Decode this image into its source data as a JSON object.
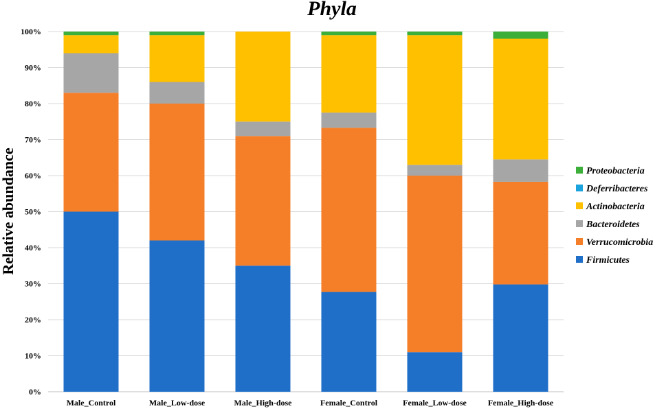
{
  "chart_data": {
    "type": "bar",
    "stacked": true,
    "title": "Phyla",
    "xlabel": "",
    "ylabel": "Relative abundance",
    "ylim": [
      0,
      100
    ],
    "y_ticks": [
      "0%",
      "10%",
      "20%",
      "30%",
      "40%",
      "50%",
      "60%",
      "70%",
      "80%",
      "90%",
      "100%"
    ],
    "grid": true,
    "legend_position": "right",
    "categories": [
      "Male_Control",
      "Male_Low-dose",
      "Male_High-dose",
      "Female_Control",
      "Female_Low-dose",
      "Female_High-dose"
    ],
    "series": [
      {
        "name": "Firmicutes",
        "color": "#1f6fc9",
        "values": [
          50,
          42,
          35,
          27.7,
          11,
          29.8
        ]
      },
      {
        "name": "Verrucomicrobia",
        "color": "#f57f29",
        "values": [
          33,
          38,
          36,
          45.6,
          49,
          28.5
        ]
      },
      {
        "name": "Bacteroidetes",
        "color": "#a6a6a6",
        "values": [
          11,
          6,
          4,
          4.2,
          3,
          6.2
        ]
      },
      {
        "name": "Actinobacteria",
        "color": "#ffc000",
        "values": [
          5,
          13,
          25,
          21.5,
          36,
          33.5
        ]
      },
      {
        "name": "Deferribacteres",
        "color": "#1aa3dc",
        "values": [
          0,
          0,
          0,
          0,
          0,
          0
        ]
      },
      {
        "name": "Proteobacteria",
        "color": "#3cae3a",
        "values": [
          1,
          1,
          0,
          1,
          1,
          2
        ]
      }
    ],
    "legend_order": [
      "Proteobacteria",
      "Deferribacteres",
      "Actinobacteria",
      "Bacteroidetes",
      "Verrucomicrobia",
      "Firmicutes"
    ]
  }
}
